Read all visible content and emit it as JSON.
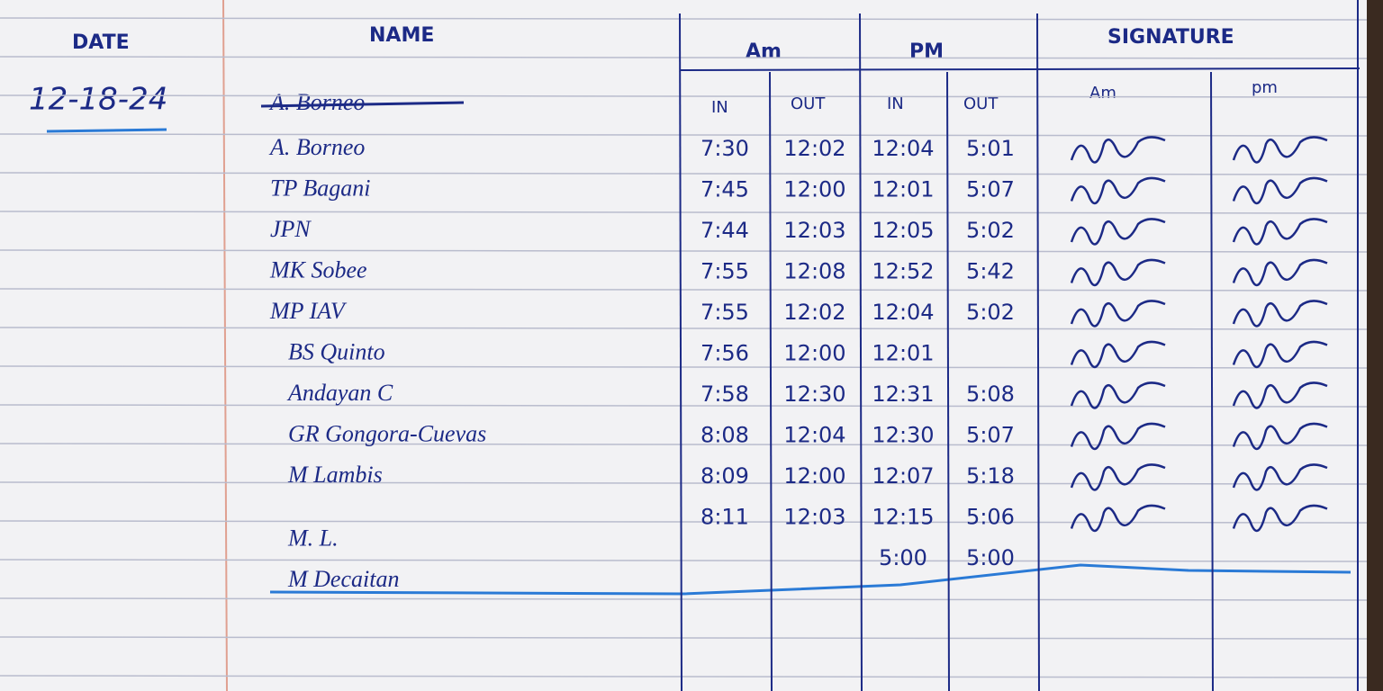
{
  "header": {
    "date": "DATE",
    "name": "NAME",
    "am": "Am",
    "pm": "PM",
    "signature": "SIGNATURE",
    "am_in": "IN",
    "am_out": "OUT",
    "pm_in": "IN",
    "pm_out": "OUT",
    "sig_am": "Am",
    "sig_pm": "pm"
  },
  "entry_date": "12-18-24",
  "struck_name": "A. Borneo",
  "rows": [
    {
      "name": "A. Borneo",
      "am_in": "7:30",
      "am_out": "12:02",
      "pm_in": "12:04",
      "pm_out": "5:01"
    },
    {
      "name": "TP Bagani",
      "am_in": "7:45",
      "am_out": "12:00",
      "pm_in": "12:01",
      "pm_out": "5:07"
    },
    {
      "name": "JPN",
      "am_in": "7:44",
      "am_out": "12:03",
      "pm_in": "12:05",
      "pm_out": "5:02"
    },
    {
      "name": "MK Sobee",
      "am_in": "7:55",
      "am_out": "12:08",
      "pm_in": "12:52",
      "pm_out": "5:42"
    },
    {
      "name": "MP IAV",
      "am_in": "7:55",
      "am_out": "12:02",
      "pm_in": "12:04",
      "pm_out": "5:02"
    },
    {
      "name": "BS Quinto",
      "am_in": "7:56",
      "am_out": "12:00",
      "pm_in": "12:01"
    },
    {
      "name": "Andayan C",
      "am_in": "7:58",
      "am_out": "12:30",
      "pm_in": "12:31",
      "pm_out": "5:08"
    },
    {
      "name": "GR Gongora-Cuevas",
      "am_in": "8:08",
      "am_out": "12:04",
      "pm_in": "12:30",
      "pm_out": "5:07"
    },
    {
      "name": "M Lambis",
      "am_in": "8:09",
      "am_out": "12:00",
      "pm_in": "12:07",
      "pm_out": "5:18"
    },
    {
      "name": "M. L.",
      "am_in": "8:11",
      "am_out": "12:03",
      "pm_in": "12:15",
      "pm_out": "5:06"
    },
    {
      "name": "M Decaitan",
      "pm_in": "5:00",
      "pm_out": "5:00"
    }
  ]
}
